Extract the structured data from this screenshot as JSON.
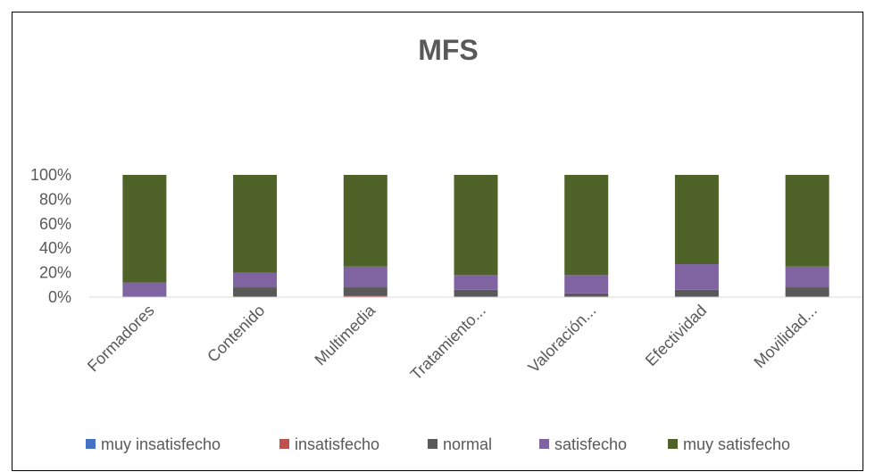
{
  "chart_data": {
    "type": "bar",
    "stacked": true,
    "percent_stacked": true,
    "title": "MFS",
    "categories": [
      "Formadores",
      "Contenido",
      "Multimedia",
      "Tratamiento...",
      "Valoración...",
      "Efectividad",
      "Movilidad..."
    ],
    "series": [
      {
        "name": "muy insatisfecho",
        "color": "#4472C4",
        "values": [
          0,
          0,
          0,
          0,
          0,
          0,
          0
        ]
      },
      {
        "name": "insatisfecho",
        "color": "#C0504D",
        "values": [
          0,
          0,
          1,
          0,
          0,
          0,
          0
        ]
      },
      {
        "name": "normal",
        "color": "#595959",
        "values": [
          0,
          8,
          7,
          6,
          3,
          6,
          8
        ]
      },
      {
        "name": "satisfecho",
        "color": "#8064A2",
        "values": [
          12,
          12,
          17,
          12,
          15,
          21,
          17
        ]
      },
      {
        "name": "muy satisfecho",
        "color": "#4F6228",
        "values": [
          88,
          80,
          75,
          82,
          82,
          73,
          75
        ]
      }
    ],
    "y_ticks": [
      "0%",
      "20%",
      "40%",
      "60%",
      "80%",
      "100%"
    ],
    "ylim": [
      0,
      100
    ],
    "grid": false,
    "legend_position": "bottom"
  }
}
